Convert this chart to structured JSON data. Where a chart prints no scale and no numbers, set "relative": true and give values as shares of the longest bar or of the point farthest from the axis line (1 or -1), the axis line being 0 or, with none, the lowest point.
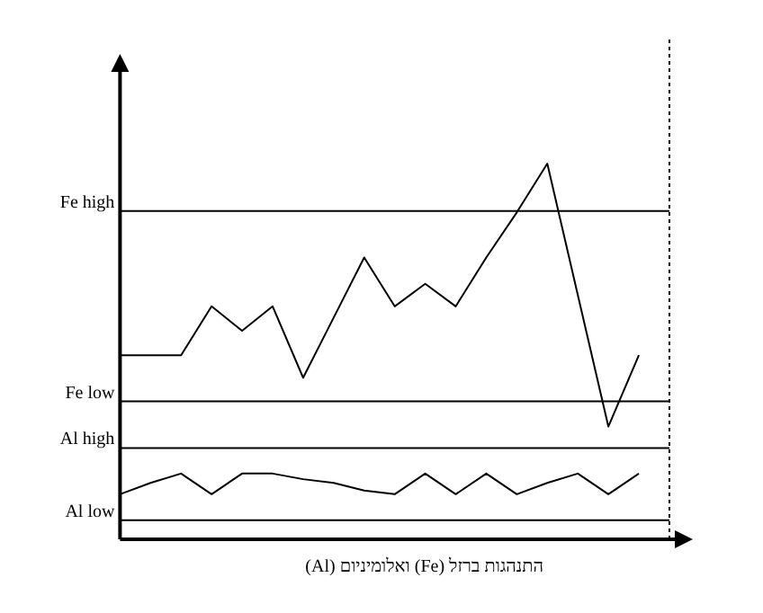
{
  "chart_data": {
    "type": "line",
    "relative": true,
    "xlabel": "התנהגות ברזל (Fe) ואלומיניום (Al)",
    "categories": [
      null,
      null,
      null,
      null,
      null,
      null,
      null,
      null,
      null,
      null,
      null,
      null,
      null,
      null,
      null,
      null,
      null,
      null
    ],
    "series": [
      {
        "color": "#000000",
        "values": [
          0.49,
          0.49,
          0.49,
          0.62,
          0.555,
          0.62,
          0.43,
          0.59,
          0.75,
          0.62,
          0.68,
          0.62,
          0.75,
          0.87,
          1,
          0.65,
          0.3,
          0.49
        ]
      },
      {
        "color": "#000000",
        "values": [
          0.12,
          0.15,
          0.175,
          0.12,
          0.175,
          0.175,
          0.16,
          0.15,
          0.13,
          0.12,
          0.175,
          0.12,
          0.175,
          0.12,
          0.15,
          0.175,
          0.12,
          0.175
        ]
      }
    ],
    "ref_lines": [
      {
        "axis": "y",
        "value": 0.874,
        "label": "Fe high",
        "color": "#000000",
        "line_style": "solid"
      },
      {
        "axis": "y",
        "value": 0.367,
        "label": "Fe low",
        "color": "#000000",
        "line_style": "solid"
      },
      {
        "axis": "y",
        "value": 0.243,
        "label": "Al high",
        "color": "#000000",
        "line_style": "solid"
      },
      {
        "axis": "y",
        "value": 0.051,
        "label": "Al low",
        "color": "#000000",
        "line_style": "solid"
      }
    ],
    "grid": false,
    "marker": "none",
    "line_style": "solid"
  }
}
